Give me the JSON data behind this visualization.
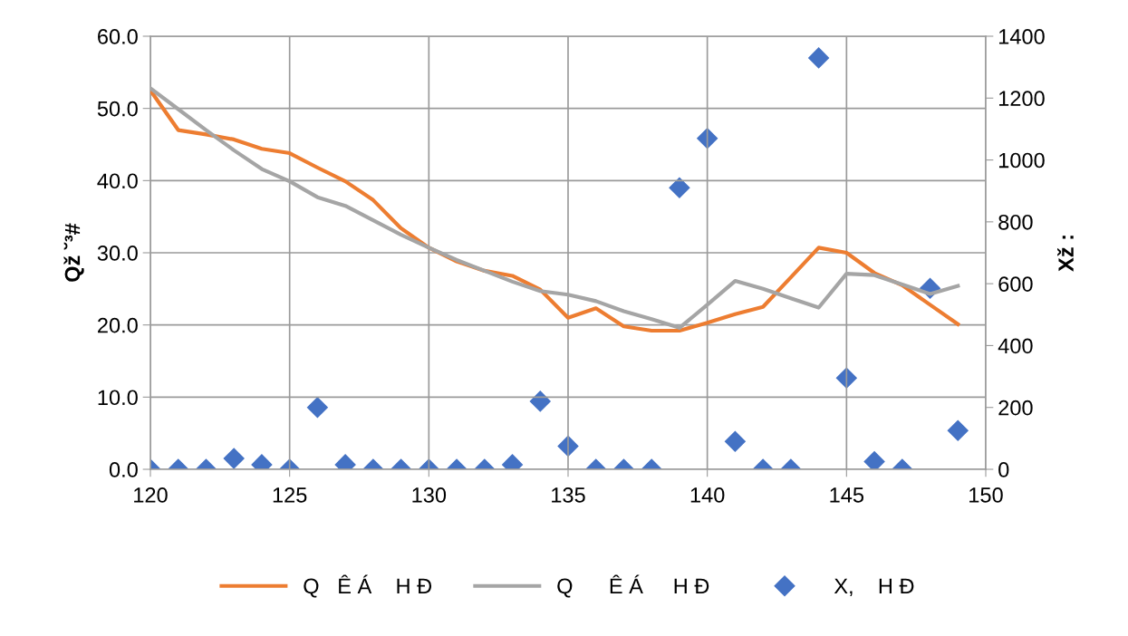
{
  "chart_data": {
    "type": "line",
    "ylabel": "Qž ˘³#",
    "y2label": "Xž :",
    "x": [
      120,
      121,
      122,
      123,
      124,
      125,
      126,
      127,
      128,
      129,
      130,
      131,
      132,
      133,
      134,
      135,
      136,
      137,
      138,
      139,
      140,
      141,
      142,
      143,
      144,
      145,
      146,
      147,
      148,
      149
    ],
    "series": [
      {
        "name": "Q   Ê Á    H Đ",
        "color": "#ed7d31",
        "values": [
          52.5,
          47.0,
          46.4,
          45.7,
          44.4,
          43.8,
          41.8,
          39.9,
          37.3,
          33.4,
          30.7,
          28.8,
          27.5,
          26.8,
          24.9,
          21.0,
          22.3,
          19.8,
          19.2,
          19.2,
          20.3,
          21.5,
          22.5,
          26.6,
          30.7,
          30.0,
          27.2,
          25.5,
          22.8,
          20.1
        ]
      },
      {
        "name": "Q      Ê Á     H Đ",
        "color": "#a5a5a5",
        "values": [
          52.8,
          49.9,
          47.0,
          44.2,
          41.6,
          39.9,
          37.7,
          36.5,
          34.5,
          32.5,
          30.7,
          29.0,
          27.5,
          26.0,
          24.7,
          24.2,
          23.3,
          21.9,
          20.8,
          19.6,
          22.8,
          26.1,
          25.0,
          23.7,
          22.4,
          27.1,
          26.9,
          25.6,
          24.3,
          25.4
        ]
      },
      {
        "name": "X,    H Đ",
        "type": "scatter",
        "axis": "y2",
        "marker": "diamond",
        "color": "#4472c4",
        "values": [
          0,
          0,
          0,
          35,
          15,
          0,
          200,
          15,
          0,
          0,
          0,
          0,
          0,
          15,
          220,
          75,
          0,
          0,
          0,
          910,
          1070,
          90,
          0,
          0,
          1330,
          295,
          25,
          0,
          585,
          125
        ]
      }
    ],
    "xlim": [
      120,
      150
    ],
    "xticks": [
      120,
      125,
      130,
      135,
      140,
      145,
      150
    ],
    "ylim": [
      0,
      60
    ],
    "yticks": [
      {
        "value": 0,
        "label": "0.0"
      },
      {
        "value": 10,
        "label": "10.0"
      },
      {
        "value": 20,
        "label": "20.0"
      },
      {
        "value": 30,
        "label": "30.0"
      },
      {
        "value": 40,
        "label": "40.0"
      },
      {
        "value": 50,
        "label": "50.0"
      },
      {
        "value": 60,
        "label": "60.0"
      }
    ],
    "y2lim": [
      0,
      1400
    ],
    "y2ticks": [
      0,
      200,
      400,
      600,
      800,
      1000,
      1200,
      1400
    ],
    "grid": true,
    "legend": "bottom"
  }
}
